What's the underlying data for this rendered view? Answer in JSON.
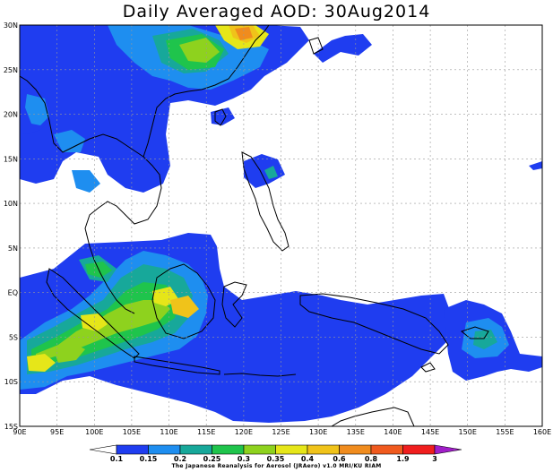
{
  "title": "Daily Averaged AOD: 30Aug2014",
  "footer": "The Japanese Reanalysis for Aerosol (JRAero) v1.0 MRI/KU RIAM",
  "map": {
    "lon_range": [
      90,
      160
    ],
    "lat_range": [
      -15,
      30
    ],
    "x_ticks": [
      "90E",
      "95E",
      "100E",
      "105E",
      "110E",
      "115E",
      "120E",
      "125E",
      "130E",
      "135E",
      "140E",
      "145E",
      "150E",
      "155E",
      "160E"
    ],
    "y_ticks": [
      "30N",
      "25N",
      "20N",
      "15N",
      "10N",
      "5N",
      "EQ",
      "5S",
      "10S",
      "15S"
    ]
  },
  "colorbar": {
    "labels": [
      "0.1",
      "0.15",
      "0.2",
      "0.25",
      "0.3",
      "0.35",
      "0.4",
      "0.6",
      "0.8",
      "1.9",
      "3"
    ],
    "colors": [
      "#1f3df0",
      "#1e8ef0",
      "#17a89a",
      "#1fc44c",
      "#8ed21e",
      "#e6e619",
      "#f0c31a",
      "#f08c1e",
      "#f05a1e",
      "#f01e1e",
      "#a01ec8"
    ]
  }
}
